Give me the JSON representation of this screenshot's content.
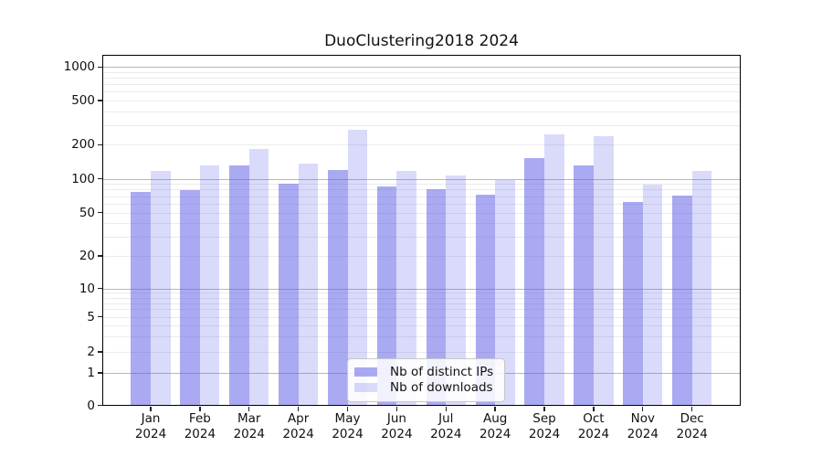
{
  "chart_data": {
    "type": "bar",
    "title": "DuoClustering2018 2024",
    "categories": [
      "Jan",
      "Feb",
      "Mar",
      "Apr",
      "May",
      "Jun",
      "Jul",
      "Aug",
      "Sep",
      "Oct",
      "Nov",
      "Dec"
    ],
    "year_label": "2024",
    "series": [
      {
        "name": "Nb of distinct IPs",
        "color": "rgba(85,85,230,0.5)",
        "values": [
          76,
          79,
          130,
          91,
          120,
          85,
          80,
          72,
          152,
          132,
          62,
          71
        ]
      },
      {
        "name": "Nb of downloads",
        "color": "rgba(85,85,230,0.22)",
        "values": [
          118,
          131,
          183,
          135,
          270,
          117,
          107,
          97,
          246,
          237,
          88,
          117
        ]
      }
    ],
    "yscale": "symlog",
    "y_ticks": [
      0,
      1,
      2,
      5,
      10,
      20,
      50,
      100,
      200,
      500,
      1000
    ],
    "ylim": [
      0,
      1260
    ],
    "grid": "on",
    "legend_position": "lower-center"
  },
  "colors": {
    "bar_dark": "rgba(85,85,230,0.5)",
    "bar_light": "rgba(85,85,230,0.22)",
    "major_grid": "#b8b8b8",
    "minor_grid": "#ebebeb",
    "spine": "#000000",
    "text": "#111111",
    "legend_border": "#c8c8c8"
  }
}
